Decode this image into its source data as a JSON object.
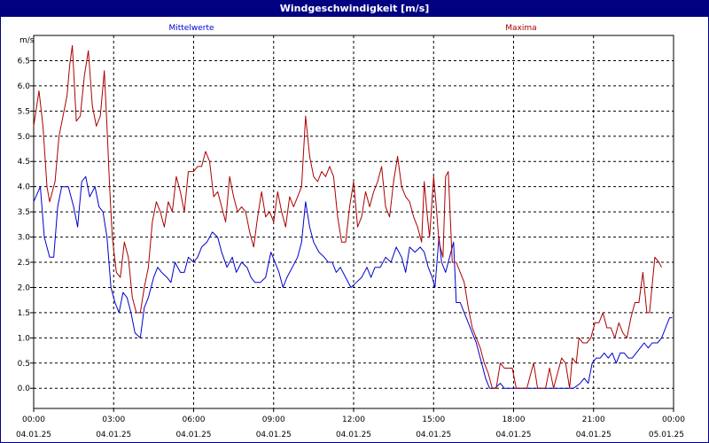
{
  "window": {
    "title": "Windgeschwindigkeit [m/s]"
  },
  "colors": {
    "mean": "#0000cc",
    "max": "#aa0000",
    "grid": "#000000",
    "titlebar": "#000080"
  },
  "chart_data": {
    "type": "line",
    "title": "Windgeschwindigkeit [m/s]",
    "ylabel": "m/s",
    "ylim": [
      -0.4,
      7.0
    ],
    "yticks": [
      "0.0",
      "0.5",
      "1.0",
      "1.5",
      "2.0",
      "2.5",
      "3.0",
      "3.5",
      "4.0",
      "4.5",
      "5.0",
      "5.5",
      "6.0",
      "6.5"
    ],
    "xlim_hours": [
      0,
      24
    ],
    "xticks": [
      {
        "time": "00:00",
        "date": "04.01.25"
      },
      {
        "time": "03:00",
        "date": "04.01.25"
      },
      {
        "time": "06:00",
        "date": "04.01.25"
      },
      {
        "time": "09:00",
        "date": "04.01.25"
      },
      {
        "time": "12:00",
        "date": "04.01.25"
      },
      {
        "time": "15:00",
        "date": "04.01.25"
      },
      {
        "time": "18:00",
        "date": "04.01.25"
      },
      {
        "time": "21:00",
        "date": "04.01.25"
      },
      {
        "time": "00:00",
        "date": "05.01.25"
      }
    ],
    "grid": true,
    "series": [
      {
        "name": "Mittelwerte",
        "points": [
          [
            0.0,
            3.7
          ],
          [
            0.25,
            4.0
          ],
          [
            0.4,
            3.0
          ],
          [
            0.6,
            2.6
          ],
          [
            0.75,
            2.6
          ],
          [
            0.9,
            3.6
          ],
          [
            1.05,
            4.0
          ],
          [
            1.3,
            4.0
          ],
          [
            1.5,
            3.6
          ],
          [
            1.65,
            3.2
          ],
          [
            1.8,
            4.1
          ],
          [
            1.95,
            4.2
          ],
          [
            2.1,
            3.8
          ],
          [
            2.3,
            4.0
          ],
          [
            2.45,
            3.6
          ],
          [
            2.6,
            3.5
          ],
          [
            2.75,
            3.0
          ],
          [
            2.9,
            2.0
          ],
          [
            3.05,
            1.7
          ],
          [
            3.2,
            1.5
          ],
          [
            3.35,
            1.9
          ],
          [
            3.5,
            1.8
          ],
          [
            3.65,
            1.5
          ],
          [
            3.8,
            1.1
          ],
          [
            4.0,
            1.0
          ],
          [
            4.15,
            1.6
          ],
          [
            4.3,
            1.8
          ],
          [
            4.5,
            2.2
          ],
          [
            4.65,
            2.4
          ],
          [
            4.8,
            2.3
          ],
          [
            5.0,
            2.2
          ],
          [
            5.15,
            2.1
          ],
          [
            5.3,
            2.5
          ],
          [
            5.5,
            2.3
          ],
          [
            5.65,
            2.3
          ],
          [
            5.8,
            2.6
          ],
          [
            6.0,
            2.5
          ],
          [
            6.15,
            2.6
          ],
          [
            6.3,
            2.8
          ],
          [
            6.5,
            2.9
          ],
          [
            6.7,
            3.1
          ],
          [
            6.9,
            3.0
          ],
          [
            7.05,
            2.7
          ],
          [
            7.25,
            2.4
          ],
          [
            7.45,
            2.6
          ],
          [
            7.6,
            2.3
          ],
          [
            7.8,
            2.5
          ],
          [
            8.0,
            2.4
          ],
          [
            8.15,
            2.2
          ],
          [
            8.3,
            2.1
          ],
          [
            8.5,
            2.1
          ],
          [
            8.7,
            2.2
          ],
          [
            8.9,
            2.7
          ],
          [
            9.05,
            2.5
          ],
          [
            9.2,
            2.3
          ],
          [
            9.35,
            2.0
          ],
          [
            9.5,
            2.2
          ],
          [
            9.7,
            2.4
          ],
          [
            9.9,
            2.6
          ],
          [
            10.05,
            2.9
          ],
          [
            10.2,
            3.7
          ],
          [
            10.35,
            3.2
          ],
          [
            10.5,
            2.9
          ],
          [
            10.7,
            2.7
          ],
          [
            10.9,
            2.6
          ],
          [
            11.05,
            2.5
          ],
          [
            11.2,
            2.5
          ],
          [
            11.35,
            2.3
          ],
          [
            11.5,
            2.4
          ],
          [
            11.7,
            2.2
          ],
          [
            11.9,
            2.0
          ],
          [
            12.1,
            2.1
          ],
          [
            12.3,
            2.2
          ],
          [
            12.5,
            2.4
          ],
          [
            12.65,
            2.2
          ],
          [
            12.8,
            2.4
          ],
          [
            13.0,
            2.4
          ],
          [
            13.2,
            2.6
          ],
          [
            13.4,
            2.5
          ],
          [
            13.6,
            2.8
          ],
          [
            13.8,
            2.6
          ],
          [
            13.95,
            2.3
          ],
          [
            14.1,
            2.8
          ],
          [
            14.3,
            2.7
          ],
          [
            14.5,
            2.8
          ],
          [
            14.65,
            2.7
          ],
          [
            14.8,
            2.4
          ],
          [
            14.95,
            2.2
          ],
          [
            15.05,
            2.0
          ],
          [
            15.2,
            3.0
          ],
          [
            15.3,
            2.5
          ],
          [
            15.45,
            2.3
          ],
          [
            15.6,
            2.6
          ],
          [
            15.75,
            2.9
          ],
          [
            15.85,
            1.7
          ],
          [
            16.0,
            1.7
          ],
          [
            16.15,
            1.5
          ],
          [
            16.3,
            1.3
          ],
          [
            16.45,
            1.1
          ],
          [
            16.6,
            0.9
          ],
          [
            16.8,
            0.5
          ],
          [
            16.95,
            0.2
          ],
          [
            17.1,
            0.0
          ],
          [
            17.3,
            0.0
          ],
          [
            17.5,
            0.1
          ],
          [
            17.65,
            0.0
          ],
          [
            17.8,
            0.0
          ],
          [
            18.0,
            0.0
          ],
          [
            18.5,
            0.0
          ],
          [
            19.0,
            0.0
          ],
          [
            19.5,
            0.0
          ],
          [
            20.0,
            0.0
          ],
          [
            20.25,
            0.0
          ],
          [
            20.5,
            0.1
          ],
          [
            20.65,
            0.2
          ],
          [
            20.8,
            0.1
          ],
          [
            20.95,
            0.5
          ],
          [
            21.1,
            0.6
          ],
          [
            21.25,
            0.6
          ],
          [
            21.4,
            0.7
          ],
          [
            21.55,
            0.6
          ],
          [
            21.7,
            0.7
          ],
          [
            21.85,
            0.5
          ],
          [
            22.0,
            0.7
          ],
          [
            22.15,
            0.7
          ],
          [
            22.3,
            0.6
          ],
          [
            22.45,
            0.6
          ],
          [
            22.6,
            0.7
          ],
          [
            22.75,
            0.8
          ],
          [
            22.9,
            0.9
          ],
          [
            23.05,
            0.8
          ],
          [
            23.2,
            0.9
          ],
          [
            23.4,
            0.9
          ],
          [
            23.55,
            1.0
          ],
          [
            23.7,
            1.2
          ],
          [
            23.85,
            1.4
          ],
          [
            23.95,
            1.4
          ]
        ]
      },
      {
        "name": "Maxima",
        "points": [
          [
            0.0,
            5.2
          ],
          [
            0.2,
            5.9
          ],
          [
            0.35,
            5.2
          ],
          [
            0.5,
            4.0
          ],
          [
            0.6,
            3.7
          ],
          [
            0.8,
            4.1
          ],
          [
            0.95,
            5.0
          ],
          [
            1.1,
            5.4
          ],
          [
            1.25,
            5.8
          ],
          [
            1.35,
            6.4
          ],
          [
            1.45,
            6.8
          ],
          [
            1.6,
            5.3
          ],
          [
            1.75,
            5.4
          ],
          [
            1.9,
            6.2
          ],
          [
            2.05,
            6.7
          ],
          [
            2.2,
            5.6
          ],
          [
            2.35,
            5.2
          ],
          [
            2.5,
            5.4
          ],
          [
            2.65,
            6.3
          ],
          [
            2.75,
            5.2
          ],
          [
            2.85,
            4.0
          ],
          [
            2.95,
            3.0
          ],
          [
            3.1,
            2.3
          ],
          [
            3.25,
            2.2
          ],
          [
            3.4,
            2.9
          ],
          [
            3.55,
            2.6
          ],
          [
            3.7,
            1.8
          ],
          [
            3.85,
            1.5
          ],
          [
            4.0,
            1.5
          ],
          [
            4.15,
            2.0
          ],
          [
            4.3,
            2.4
          ],
          [
            4.45,
            3.3
          ],
          [
            4.6,
            3.7
          ],
          [
            4.75,
            3.5
          ],
          [
            4.9,
            3.2
          ],
          [
            5.05,
            3.7
          ],
          [
            5.2,
            3.5
          ],
          [
            5.35,
            4.2
          ],
          [
            5.5,
            3.9
          ],
          [
            5.65,
            3.5
          ],
          [
            5.8,
            4.3
          ],
          [
            6.0,
            4.3
          ],
          [
            6.15,
            4.4
          ],
          [
            6.3,
            4.4
          ],
          [
            6.45,
            4.7
          ],
          [
            6.6,
            4.5
          ],
          [
            6.75,
            3.8
          ],
          [
            6.9,
            3.9
          ],
          [
            7.05,
            3.6
          ],
          [
            7.2,
            3.3
          ],
          [
            7.35,
            4.2
          ],
          [
            7.5,
            3.8
          ],
          [
            7.65,
            3.5
          ],
          [
            7.8,
            3.6
          ],
          [
            7.95,
            3.5
          ],
          [
            8.1,
            3.1
          ],
          [
            8.25,
            2.8
          ],
          [
            8.4,
            3.4
          ],
          [
            8.55,
            3.9
          ],
          [
            8.7,
            3.4
          ],
          [
            8.85,
            3.5
          ],
          [
            9.0,
            3.3
          ],
          [
            9.15,
            3.9
          ],
          [
            9.3,
            3.5
          ],
          [
            9.45,
            3.2
          ],
          [
            9.6,
            3.8
          ],
          [
            9.75,
            3.6
          ],
          [
            9.9,
            3.8
          ],
          [
            10.05,
            4.0
          ],
          [
            10.2,
            5.4
          ],
          [
            10.35,
            4.6
          ],
          [
            10.5,
            4.2
          ],
          [
            10.65,
            4.1
          ],
          [
            10.8,
            4.3
          ],
          [
            10.95,
            4.2
          ],
          [
            11.1,
            4.4
          ],
          [
            11.25,
            4.2
          ],
          [
            11.4,
            3.4
          ],
          [
            11.55,
            2.9
          ],
          [
            11.7,
            2.9
          ],
          [
            11.85,
            3.6
          ],
          [
            12.0,
            4.1
          ],
          [
            12.15,
            3.2
          ],
          [
            12.3,
            3.4
          ],
          [
            12.45,
            3.9
          ],
          [
            12.6,
            3.6
          ],
          [
            12.75,
            3.9
          ],
          [
            12.9,
            4.1
          ],
          [
            13.05,
            4.4
          ],
          [
            13.2,
            3.6
          ],
          [
            13.35,
            3.4
          ],
          [
            13.5,
            4.1
          ],
          [
            13.65,
            4.6
          ],
          [
            13.8,
            4.0
          ],
          [
            13.95,
            3.8
          ],
          [
            14.1,
            3.7
          ],
          [
            14.25,
            3.4
          ],
          [
            14.4,
            3.2
          ],
          [
            14.55,
            2.9
          ],
          [
            14.65,
            4.1
          ],
          [
            14.75,
            3.5
          ],
          [
            14.85,
            3.0
          ],
          [
            15.0,
            4.2
          ],
          [
            15.1,
            3.6
          ],
          [
            15.2,
            2.9
          ],
          [
            15.35,
            2.6
          ],
          [
            15.45,
            4.2
          ],
          [
            15.55,
            4.3
          ],
          [
            15.7,
            2.5
          ],
          [
            15.85,
            2.5
          ],
          [
            16.0,
            2.3
          ],
          [
            16.15,
            2.1
          ],
          [
            16.3,
            1.6
          ],
          [
            16.45,
            1.2
          ],
          [
            16.6,
            1.0
          ],
          [
            16.75,
            0.8
          ],
          [
            16.9,
            0.5
          ],
          [
            17.05,
            0.3
          ],
          [
            17.2,
            0.0
          ],
          [
            17.35,
            0.0
          ],
          [
            17.5,
            0.5
          ],
          [
            17.65,
            0.4
          ],
          [
            17.8,
            0.4
          ],
          [
            17.95,
            0.4
          ],
          [
            18.1,
            0.0
          ],
          [
            18.5,
            0.0
          ],
          [
            18.75,
            0.5
          ],
          [
            18.9,
            0.0
          ],
          [
            19.2,
            0.0
          ],
          [
            19.35,
            0.4
          ],
          [
            19.5,
            0.0
          ],
          [
            19.65,
            0.3
          ],
          [
            19.8,
            0.6
          ],
          [
            19.95,
            0.5
          ],
          [
            20.1,
            0.0
          ],
          [
            20.2,
            0.6
          ],
          [
            20.35,
            0.5
          ],
          [
            20.45,
            1.0
          ],
          [
            20.6,
            0.9
          ],
          [
            20.75,
            0.9
          ],
          [
            20.9,
            1.0
          ],
          [
            21.05,
            1.3
          ],
          [
            21.2,
            1.3
          ],
          [
            21.35,
            1.5
          ],
          [
            21.5,
            1.2
          ],
          [
            21.65,
            1.2
          ],
          [
            21.8,
            1.0
          ],
          [
            21.95,
            1.3
          ],
          [
            22.1,
            1.1
          ],
          [
            22.25,
            1.0
          ],
          [
            22.4,
            1.4
          ],
          [
            22.55,
            1.7
          ],
          [
            22.7,
            1.7
          ],
          [
            22.85,
            2.3
          ],
          [
            23.0,
            1.5
          ],
          [
            23.1,
            1.5
          ],
          [
            23.3,
            2.6
          ],
          [
            23.45,
            2.5
          ],
          [
            23.55,
            2.4
          ]
        ]
      }
    ]
  }
}
